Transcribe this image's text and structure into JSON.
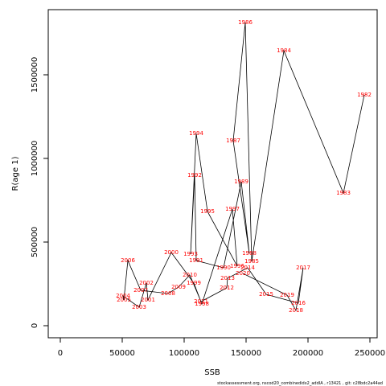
{
  "chart_data": {
    "type": "scatter",
    "x_label": "SSB",
    "y_label": "R(age 1)",
    "footer": "stockassessment.org, nscod20_combinedidx2_addIA , r13421 , git: c28bdc2a44ad",
    "labels": [
      "1982",
      "1983",
      "1984",
      "1985",
      "1986",
      "1987",
      "1988",
      "1989",
      "1990",
      "1991",
      "1992",
      "1993",
      "1994",
      "1995",
      "1996",
      "1997",
      "1998",
      "1999",
      "2000",
      "2001",
      "2002",
      "2003",
      "2004",
      "2005",
      "2006",
      "2007",
      "2008",
      "2009",
      "2010",
      "2011",
      "2012",
      "2013",
      "2014",
      "2015",
      "2016",
      "2017",
      "2018",
      "2019",
      "2020"
    ],
    "x": [
      245455,
      228571,
      180519,
      154545,
      149350,
      139610,
      152597,
      146104,
      131818,
      109740,
      108442,
      105195,
      109740,
      118831,
      142857,
      138961,
      114286,
      107792,
      89610,
      70779,
      69480,
      63636,
      50649,
      51299,
      54545,
      64935,
      87013,
      95454,
      104545,
      113636,
      134416,
      135065,
      151299,
      166234,
      192208,
      196104,
      190260,
      183117,
      147403
    ],
    "y": [
      1379800,
      793000,
      1644000,
      384600,
      1812500,
      1105800,
      432700,
      860600,
      346200,
      389400,
      899000,
      427900,
      1149000,
      682700,
      355800,
      697100,
      129800,
      254800,
      437500,
      153800,
      254800,
      110600,
      177900,
      153800,
      389400,
      211500,
      192300,
      230800,
      302900,
      144200,
      226000,
      283700,
      346200,
      187500,
      134600,
      346200,
      91300,
      182700,
      312500
    ],
    "line_color": "#000000",
    "label_color": "#ff0000",
    "xlim": [
      -9740,
      255844
    ],
    "ylim": [
      -72115,
      1889400
    ],
    "xticks": [
      0,
      50000,
      100000,
      150000,
      200000,
      250000
    ],
    "yticks": [
      0,
      500000,
      1000000,
      1500000
    ]
  }
}
